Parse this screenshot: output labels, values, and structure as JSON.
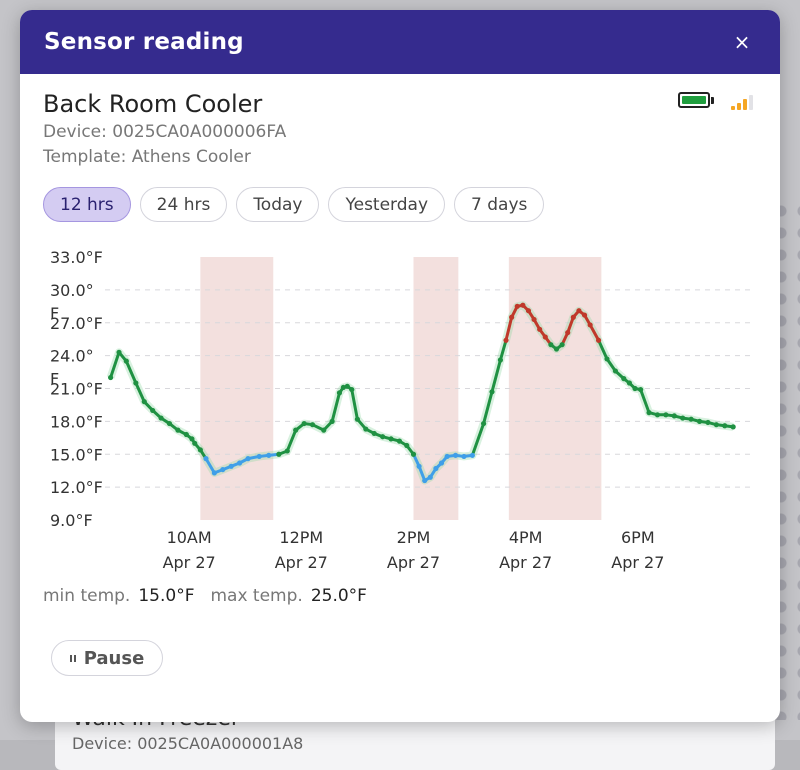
{
  "background": {
    "card_title": "Walk In Freezer",
    "card_subtitle": "Device: 0025CA0A000001A8"
  },
  "modal": {
    "title": "Sensor reading",
    "close_label": "×"
  },
  "device": {
    "name": "Back Room Cooler",
    "device_id": "Device: 0025CA0A000006FA",
    "template": "Template: Athens Cooler",
    "battery_icon": "battery-full-icon",
    "signal_icon": "signal-strength-icon"
  },
  "tabs": [
    {
      "label": "12 hrs",
      "active": true
    },
    {
      "label": "24 hrs",
      "active": false
    },
    {
      "label": "Today",
      "active": false
    },
    {
      "label": "Yesterday",
      "active": false
    },
    {
      "label": "7 days",
      "active": false
    }
  ],
  "stats": {
    "min_label": "min temp.",
    "min_value": "15.0°F",
    "max_label": "max temp.",
    "max_value": "25.0°F"
  },
  "controls": {
    "pause_label": "Pause",
    "pause_icon": "pause-icon"
  },
  "colors": {
    "header": "#352b8e",
    "normal": "#1f9142",
    "low": "#3f9fe8",
    "high": "#c0392b",
    "alert_band": "#f3e0de"
  },
  "chart_data": {
    "type": "line",
    "y_tick_labels": [
      "33.0°F",
      "30.0°\nF",
      "27.0°F",
      "24.0°\nF",
      "21.0°F",
      "18.0°F",
      "15.0°F",
      "12.0°F",
      "9.0°F"
    ],
    "y_ticks": [
      33,
      30,
      27,
      24,
      21,
      18,
      15,
      12,
      9
    ],
    "ylim": [
      9,
      33
    ],
    "xlim": [
      8.5,
      20.0
    ],
    "x_ticks": [
      {
        "x": 10,
        "line1": "10AM",
        "line2": "Apr 27"
      },
      {
        "x": 12,
        "line1": "12PM",
        "line2": "Apr 27"
      },
      {
        "x": 14,
        "line1": "2PM",
        "line2": "Apr 27"
      },
      {
        "x": 16,
        "line1": "4PM",
        "line2": "Apr 27"
      },
      {
        "x": 18,
        "line1": "6PM",
        "line2": "Apr 27"
      }
    ],
    "thresholds": {
      "low": 15.0,
      "high": 25.0
    },
    "alert_bands": [
      [
        10.2,
        11.5
      ],
      [
        14.0,
        14.8
      ],
      [
        15.7,
        17.35
      ]
    ],
    "x": [
      8.6,
      8.75,
      8.88,
      9.05,
      9.2,
      9.35,
      9.5,
      9.65,
      9.8,
      9.95,
      10.05,
      10.1,
      10.2,
      10.3,
      10.45,
      10.6,
      10.75,
      10.9,
      11.05,
      11.25,
      11.42,
      11.6,
      11.75,
      11.9,
      12.05,
      12.2,
      12.4,
      12.55,
      12.68,
      12.75,
      12.82,
      12.9,
      13.0,
      13.15,
      13.3,
      13.45,
      13.6,
      13.75,
      13.88,
      14.0,
      14.1,
      14.2,
      14.3,
      14.4,
      14.5,
      14.6,
      14.75,
      14.9,
      15.05,
      15.25,
      15.4,
      15.55,
      15.65,
      15.75,
      15.85,
      15.95,
      16.05,
      16.15,
      16.25,
      16.35,
      16.45,
      16.55,
      16.65,
      16.75,
      16.85,
      16.95,
      17.05,
      17.15,
      17.3,
      17.45,
      17.6,
      17.75,
      17.85,
      17.95,
      18.05,
      18.2,
      18.35,
      18.5,
      18.65,
      18.8,
      18.95,
      19.1,
      19.25,
      19.4,
      19.55,
      19.7
    ],
    "y": [
      22.0,
      24.3,
      23.5,
      21.5,
      19.8,
      19.0,
      18.3,
      17.8,
      17.2,
      16.8,
      16.4,
      16.0,
      15.4,
      14.6,
      13.3,
      13.6,
      13.9,
      14.2,
      14.6,
      14.8,
      14.9,
      15.0,
      15.3,
      17.2,
      17.8,
      17.7,
      17.2,
      18.0,
      20.6,
      21.1,
      21.2,
      20.9,
      18.2,
      17.3,
      16.9,
      16.6,
      16.4,
      16.2,
      15.8,
      15.0,
      13.9,
      12.6,
      12.9,
      13.7,
      14.2,
      14.8,
      14.9,
      14.8,
      14.9,
      17.8,
      20.7,
      23.6,
      25.4,
      27.5,
      28.5,
      28.6,
      28.1,
      27.3,
      26.4,
      25.7,
      25.0,
      24.6,
      25.0,
      26.1,
      27.5,
      28.1,
      27.7,
      26.8,
      25.4,
      23.7,
      22.6,
      21.9,
      21.5,
      21.0,
      20.9,
      18.8,
      18.6,
      18.6,
      18.5,
      18.3,
      18.2,
      18.0,
      17.9,
      17.7,
      17.6,
      17.5
    ]
  }
}
